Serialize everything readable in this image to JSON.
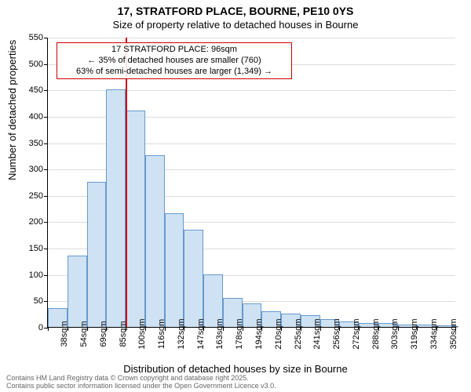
{
  "title_line1": "17, STRATFORD PLACE, BOURNE, PE10 0YS",
  "title_line2": "Size of property relative to detached houses in Bourne",
  "y_axis_label": "Number of detached properties",
  "x_axis_label": "Distribution of detached houses by size in Bourne",
  "footer_line1": "Contains HM Land Registry data © Crown copyright and database right 2025.",
  "footer_line2": "Contains public sector information licensed under the Open Government Licence v3.0.",
  "annotation": {
    "line1": "17 STRATFORD PLACE: 96sqm",
    "line2": "← 35% of detached houses are smaller (760)",
    "line3": "63% of semi-detached houses are larger (1,349) →",
    "border_color": "#cc0000"
  },
  "chart": {
    "type": "histogram",
    "ylim": [
      0,
      550
    ],
    "ytick_step": 50,
    "bar_fill": "#cfe2f3",
    "bar_stroke": "#6699cc",
    "grid_color": "#dddddd",
    "background_color": "#ffffff",
    "marker_value_index": 4,
    "marker_color": "#cc0000",
    "categories": [
      "38sqm",
      "54sqm",
      "69sqm",
      "85sqm",
      "100sqm",
      "116sqm",
      "132sqm",
      "147sqm",
      "163sqm",
      "178sqm",
      "194sqm",
      "210sqm",
      "225sqm",
      "241sqm",
      "256sqm",
      "272sqm",
      "288sqm",
      "303sqm",
      "319sqm",
      "334sqm",
      "350sqm"
    ],
    "values": [
      35,
      135,
      275,
      450,
      410,
      325,
      215,
      185,
      100,
      55,
      45,
      30,
      25,
      22,
      15,
      10,
      8,
      7,
      5,
      4,
      3
    ]
  }
}
